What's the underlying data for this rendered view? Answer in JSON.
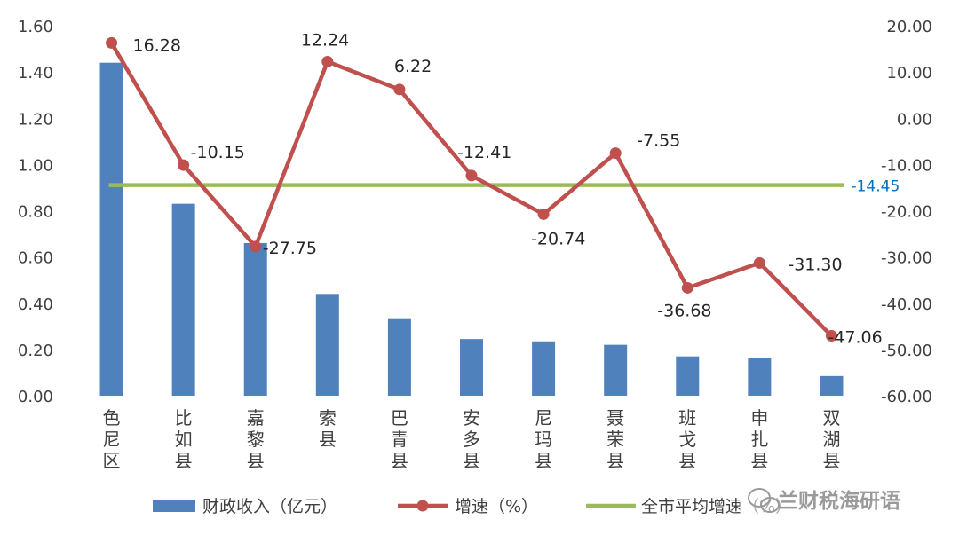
{
  "chart_data": {
    "type": "bar+line",
    "categories": [
      [
        "色",
        "尼",
        "区"
      ],
      [
        "比",
        "如",
        "县"
      ],
      [
        "嘉",
        "黎",
        "县"
      ],
      [
        "索",
        "县"
      ],
      [
        "巴",
        "青",
        "县"
      ],
      [
        "安",
        "多",
        "县"
      ],
      [
        "尼",
        "玛",
        "县"
      ],
      [
        "聂",
        "荣",
        "县"
      ],
      [
        "班",
        "戈",
        "县"
      ],
      [
        "申",
        "扎",
        "县"
      ],
      [
        "双",
        "湖",
        "县"
      ]
    ],
    "left_axis": {
      "ylim": [
        0,
        1.6
      ],
      "ticks": [
        "0.00",
        "0.20",
        "0.40",
        "0.60",
        "0.80",
        "1.00",
        "1.20",
        "1.40",
        "1.60"
      ]
    },
    "right_axis": {
      "ylim": [
        -60,
        20
      ],
      "ticks": [
        "-60.00",
        "-50.00",
        "-40.00",
        "-30.00",
        "-20.00",
        "-10.00",
        "0.00",
        "10.00",
        "20.00"
      ]
    },
    "series": [
      {
        "name": "财政收入（亿元）",
        "kind": "bar",
        "axis": "left",
        "color": "#4f81bd",
        "values": [
          1.44,
          0.83,
          0.66,
          0.44,
          0.335,
          0.245,
          0.235,
          0.22,
          0.17,
          0.165,
          0.085
        ]
      },
      {
        "name": "增速（%）",
        "kind": "line",
        "axis": "right",
        "color": "#c0504d",
        "values": [
          16.28,
          -10.15,
          -27.75,
          12.24,
          6.22,
          -12.41,
          -20.74,
          -7.55,
          -36.68,
          -31.3,
          -47.06
        ],
        "labels": [
          "16.28",
          "-10.15",
          "-27.75",
          "12.24",
          "6.22",
          "-12.41",
          "-20.74",
          "-7.55",
          "-36.68",
          "-31.30",
          "-47.06"
        ]
      },
      {
        "name": "全市平均增速（%）",
        "kind": "line",
        "axis": "right",
        "color": "#9bbb59",
        "value": -14.45,
        "label": "-14.45"
      }
    ],
    "avg_label_color": "#0070c0",
    "grid": false,
    "legend": "bottom"
  },
  "watermark": "兰财税海研语"
}
